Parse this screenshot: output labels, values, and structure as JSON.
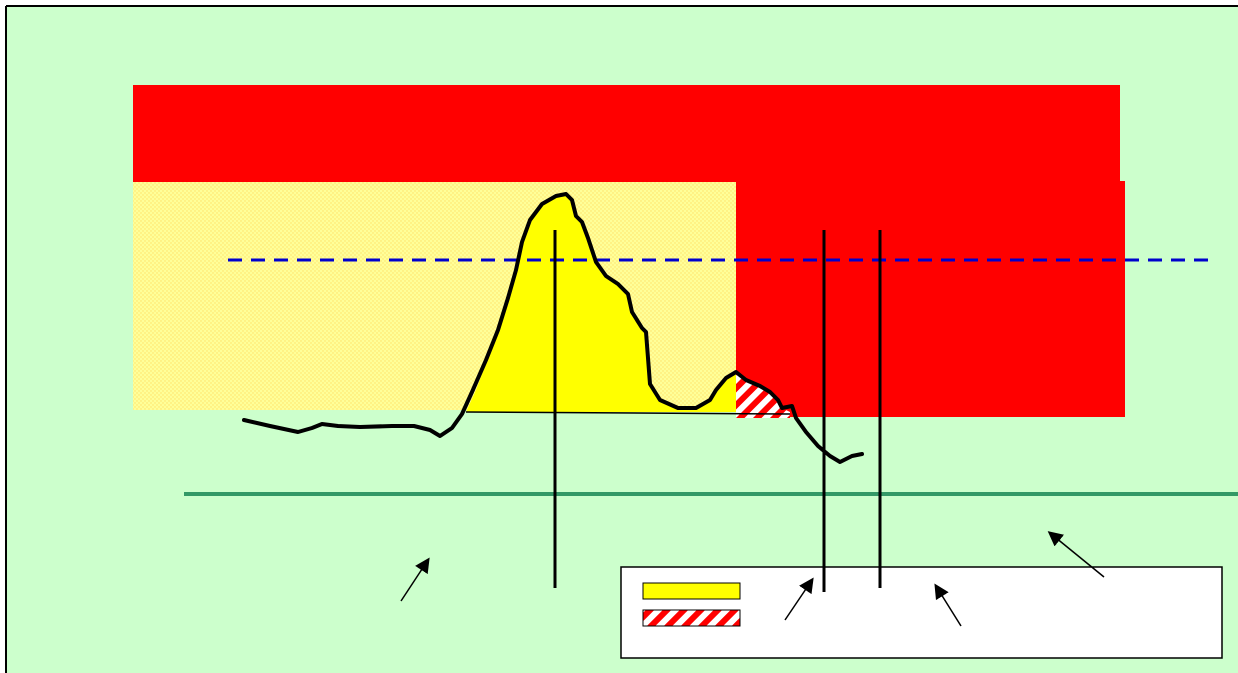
{
  "diagram": {
    "colors": {
      "background": "#ccffcc",
      "frame": "#000000",
      "red_zone": "#ff0000",
      "yellow_zone": "#ffff99",
      "yellow_fill": "#ffff00",
      "hatch_red": "#ff0000",
      "hatch_white": "#ffffff",
      "curve": "#000000",
      "dashed_line": "#0000cc",
      "green_line": "#339966",
      "legend_box": "#ffffff"
    },
    "legend": {
      "swatches": [
        "yellow-solid",
        "red-white-hatched"
      ]
    },
    "arrows": 4,
    "vertical_markers": 3
  }
}
